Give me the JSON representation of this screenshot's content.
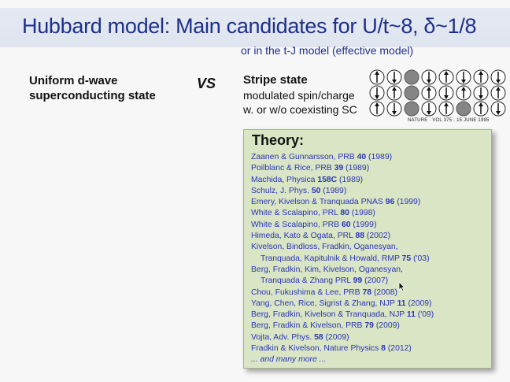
{
  "slide": {
    "title": "Hubbard model: Main candidates for U/t~8, δ~1/8",
    "subtitle": "or in the t-J model (effective model)",
    "left": {
      "line1": "Uniform d-wave",
      "line2": "superconducting state"
    },
    "vs_label": "VS",
    "stripe": {
      "title": "Stripe state",
      "line1": "modulated spin/charge",
      "line2": "w. or w/o coexisting SC"
    },
    "figure_caption": "NATURE · VOL 375 · 15 JUNE 1995",
    "theory": {
      "heading": "Theory:",
      "refs": [
        {
          "text": "Zaanen & Gunnarsson, PRB ",
          "vol": "40",
          "rest": " (1989)",
          "indent": false
        },
        {
          "text": "Poilblanc & Rice, PRB ",
          "vol": "39",
          "rest": " (1989)",
          "indent": false
        },
        {
          "text": "Machida, Physica ",
          "vol": "158C",
          "rest": " (1989)",
          "indent": false
        },
        {
          "text": "Schulz, J. Phys. ",
          "vol": "50",
          "rest": " (1989)",
          "indent": false
        },
        {
          "text": "Emery, Kivelson & Tranquada PNAS ",
          "vol": "96",
          "rest": " (1999)",
          "indent": false
        },
        {
          "text": "White & Scalapino, PRL ",
          "vol": "80",
          "rest": " (1998)",
          "indent": false
        },
        {
          "text": "White & Scalapino, PRB ",
          "vol": "60",
          "rest": " (1999)",
          "indent": false
        },
        {
          "text": "Himeda, Kato & Ogata, PRL ",
          "vol": "88",
          "rest": " (2002)",
          "indent": false
        },
        {
          "text": "Kivelson, Bindloss, Fradkin, Oganesyan,",
          "vol": "",
          "rest": "",
          "indent": false
        },
        {
          "text": "Tranquada, Kapitulnik & Howald, RMP ",
          "vol": "75",
          "rest": " ('03)",
          "indent": true
        },
        {
          "text": "Berg, Fradkin, Kim, Kivelson, Oganesyan,",
          "vol": "",
          "rest": "",
          "indent": false
        },
        {
          "text": "Tranquada & Zhang PRL ",
          "vol": "99",
          "rest": " (2007)",
          "indent": true
        },
        {
          "text": "Chou, Fukushima & Lee, PRB ",
          "vol": "78",
          "rest": " (2008)",
          "indent": false
        },
        {
          "text": "Yang, Chen, Rice, Sigrist & Zhang, NJP ",
          "vol": "11",
          "rest": " (2009)",
          "indent": false
        },
        {
          "text": "Berg, Fradkin, Kivelson & Tranquada, NJP ",
          "vol": "11",
          "rest": " ('09)",
          "indent": false
        },
        {
          "text": "Berg, Fradkin & Kivelson, PRB ",
          "vol": "79",
          "rest": " (2009)",
          "indent": false
        },
        {
          "text": "Vojta, Adv. Phys. ",
          "vol": "58",
          "rest": " (2009)",
          "indent": false
        },
        {
          "text": "Fradkin & Kivelson, Nature Physics ",
          "vol": "8",
          "rest": " (2012)",
          "indent": false
        }
      ],
      "more": "... and many more ..."
    },
    "colors": {
      "title": "#1d2f8f",
      "reference": "#2a35b8",
      "theory_box": "#d9e5c4"
    },
    "icons": [
      "spin-up-arrow-icon",
      "spin-down-arrow-icon",
      "hole-site-icon",
      "mouse-cursor-icon"
    ]
  }
}
